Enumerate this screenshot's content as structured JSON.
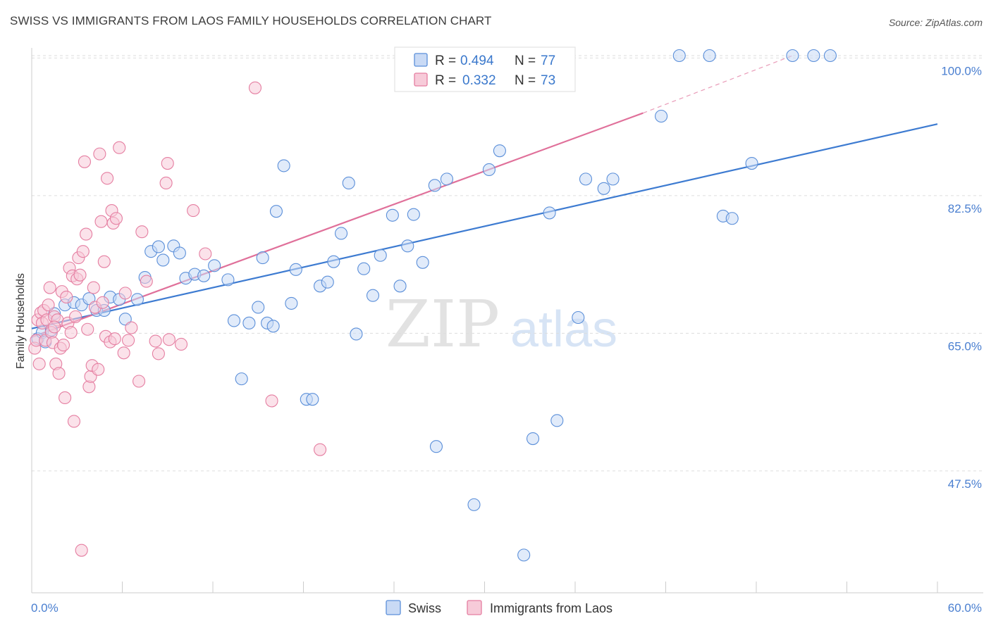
{
  "header": {
    "title": "SWISS VS IMMIGRANTS FROM LAOS FAMILY HOUSEHOLDS CORRELATION CHART",
    "source": "Source: ZipAtlas.com"
  },
  "watermark": {
    "zip": "ZIP",
    "atlas": "atlas"
  },
  "colors": {
    "blue": "#5b8fd9",
    "blue_fill": "#c9daf5",
    "blue_line": "#3d7bd1",
    "pink": "#e57ea1",
    "pink_fill": "#f7cbd9",
    "pink_line": "#e0709a",
    "grid": "#dddddd",
    "axis_text": "#4a7fd0"
  },
  "chart_data": {
    "type": "scatter",
    "title": "SWISS VS IMMIGRANTS FROM LAOS FAMILY HOUSEHOLDS CORRELATION CHART",
    "xlabel": "",
    "ylabel": "Family Households",
    "xlim": [
      0,
      60
    ],
    "ylim": [
      32,
      102
    ],
    "x_tick_labels": [
      "0.0%",
      "60.0%"
    ],
    "y_ticks": [
      47.5,
      65.0,
      82.5,
      100.0
    ],
    "y_tick_labels": [
      "47.5%",
      "65.0%",
      "82.5%",
      "100.0%"
    ],
    "legend": [
      {
        "name": "Swiss",
        "R": "0.494",
        "N": "77"
      },
      {
        "name": "Immigrants from Laos",
        "R": "0.332",
        "N": "73"
      }
    ],
    "legend_labels": {
      "r": "R =",
      "n": "N ="
    },
    "series": [
      {
        "name": "Swiss",
        "color": "#5b8fd9",
        "trend": {
          "x": [
            0,
            60
          ],
          "y": [
            65.6,
            91.6
          ]
        },
        "points": [
          [
            0.4,
            64.3
          ],
          [
            0.7,
            65.1
          ],
          [
            0.9,
            63.9
          ],
          [
            1.3,
            65.4
          ],
          [
            1.5,
            67.5
          ],
          [
            2.2,
            68.6
          ],
          [
            2.8,
            68.9
          ],
          [
            3.3,
            68.6
          ],
          [
            3.8,
            69.4
          ],
          [
            4.3,
            67.9
          ],
          [
            4.8,
            67.9
          ],
          [
            5.2,
            69.6
          ],
          [
            5.8,
            69.3
          ],
          [
            6.2,
            66.8
          ],
          [
            7.0,
            69.3
          ],
          [
            7.5,
            72.1
          ],
          [
            7.9,
            75.4
          ],
          [
            8.4,
            76.0
          ],
          [
            8.7,
            74.3
          ],
          [
            9.4,
            76.1
          ],
          [
            9.8,
            75.2
          ],
          [
            10.2,
            72.0
          ],
          [
            10.8,
            72.5
          ],
          [
            11.4,
            72.3
          ],
          [
            12.1,
            73.6
          ],
          [
            13.0,
            71.8
          ],
          [
            13.4,
            66.6
          ],
          [
            13.9,
            59.2
          ],
          [
            14.4,
            66.3
          ],
          [
            15.0,
            68.3
          ],
          [
            15.3,
            74.6
          ],
          [
            15.6,
            66.3
          ],
          [
            16.0,
            65.9
          ],
          [
            16.2,
            80.5
          ],
          [
            16.7,
            86.3
          ],
          [
            17.2,
            68.8
          ],
          [
            17.5,
            73.1
          ],
          [
            18.2,
            56.6
          ],
          [
            18.6,
            56.6
          ],
          [
            19.1,
            71.0
          ],
          [
            19.6,
            71.5
          ],
          [
            20.0,
            74.1
          ],
          [
            20.5,
            77.7
          ],
          [
            21.0,
            84.1
          ],
          [
            21.5,
            64.9
          ],
          [
            22.0,
            73.2
          ],
          [
            22.6,
            69.8
          ],
          [
            23.1,
            74.9
          ],
          [
            23.9,
            80.0
          ],
          [
            24.4,
            71.0
          ],
          [
            24.9,
            76.1
          ],
          [
            25.3,
            80.1
          ],
          [
            25.9,
            74.0
          ],
          [
            26.7,
            83.8
          ],
          [
            26.8,
            50.6
          ],
          [
            27.5,
            84.6
          ],
          [
            29.3,
            43.2
          ],
          [
            30.3,
            85.8
          ],
          [
            31.0,
            88.2
          ],
          [
            32.6,
            36.8
          ],
          [
            33.2,
            51.6
          ],
          [
            34.3,
            80.3
          ],
          [
            34.8,
            53.9
          ],
          [
            36.2,
            67.0
          ],
          [
            36.7,
            84.6
          ],
          [
            37.9,
            83.4
          ],
          [
            38.5,
            84.6
          ],
          [
            41.7,
            92.6
          ],
          [
            42.9,
            100.3
          ],
          [
            44.9,
            100.3
          ],
          [
            45.8,
            79.9
          ],
          [
            46.4,
            79.6
          ],
          [
            47.7,
            86.6
          ],
          [
            50.4,
            100.3
          ],
          [
            51.8,
            100.3
          ],
          [
            52.9,
            100.3
          ],
          [
            34.7,
            100.3
          ]
        ]
      },
      {
        "name": "Immigrants from Laos",
        "color": "#e57ea1",
        "trend": {
          "x": [
            0,
            40.5
          ],
          "y": [
            64.5,
            93.0
          ],
          "dash": {
            "x": [
              40.5,
              50.4
            ],
            "y": [
              93.0,
              100.3
            ]
          }
        },
        "points": [
          [
            0.2,
            63.1
          ],
          [
            0.3,
            64.1
          ],
          [
            0.4,
            66.7
          ],
          [
            0.5,
            61.1
          ],
          [
            0.6,
            67.6
          ],
          [
            0.7,
            66.3
          ],
          [
            0.8,
            67.9
          ],
          [
            0.9,
            64.1
          ],
          [
            1.0,
            66.7
          ],
          [
            1.1,
            68.6
          ],
          [
            1.2,
            70.8
          ],
          [
            1.3,
            65.1
          ],
          [
            1.4,
            63.8
          ],
          [
            1.5,
            67.1
          ],
          [
            1.6,
            61.1
          ],
          [
            1.7,
            66.7
          ],
          [
            1.8,
            59.9
          ],
          [
            1.9,
            63.1
          ],
          [
            2.0,
            70.3
          ],
          [
            2.1,
            63.5
          ],
          [
            2.2,
            56.8
          ],
          [
            2.4,
            66.3
          ],
          [
            2.5,
            73.3
          ],
          [
            2.6,
            65.1
          ],
          [
            2.7,
            72.3
          ],
          [
            2.8,
            53.8
          ],
          [
            2.9,
            67.1
          ],
          [
            3.0,
            71.9
          ],
          [
            3.1,
            74.6
          ],
          [
            3.2,
            72.4
          ],
          [
            3.3,
            37.4
          ],
          [
            3.4,
            75.4
          ],
          [
            3.5,
            86.8
          ],
          [
            3.6,
            77.6
          ],
          [
            3.7,
            65.5
          ],
          [
            3.8,
            58.2
          ],
          [
            3.9,
            59.5
          ],
          [
            4.0,
            60.9
          ],
          [
            4.1,
            70.8
          ],
          [
            4.2,
            68.3
          ],
          [
            4.4,
            60.4
          ],
          [
            4.5,
            87.8
          ],
          [
            4.6,
            79.2
          ],
          [
            4.8,
            74.1
          ],
          [
            4.9,
            64.6
          ],
          [
            5.0,
            84.7
          ],
          [
            5.2,
            63.9
          ],
          [
            5.3,
            80.6
          ],
          [
            5.4,
            79.0
          ],
          [
            5.5,
            64.3
          ],
          [
            5.6,
            79.6
          ],
          [
            5.8,
            88.6
          ],
          [
            6.1,
            62.5
          ],
          [
            6.2,
            70.1
          ],
          [
            6.4,
            64.1
          ],
          [
            6.6,
            65.7
          ],
          [
            7.1,
            58.9
          ],
          [
            7.3,
            77.9
          ],
          [
            7.6,
            71.6
          ],
          [
            8.2,
            64.0
          ],
          [
            8.4,
            62.4
          ],
          [
            8.9,
            84.1
          ],
          [
            9.0,
            86.6
          ],
          [
            9.1,
            64.2
          ],
          [
            9.9,
            63.6
          ],
          [
            10.7,
            80.6
          ],
          [
            11.5,
            75.1
          ],
          [
            14.8,
            96.2
          ],
          [
            15.9,
            56.4
          ],
          [
            19.1,
            50.2
          ],
          [
            4.7,
            68.9
          ],
          [
            2.3,
            69.6
          ],
          [
            1.5,
            65.8
          ]
        ]
      }
    ]
  }
}
